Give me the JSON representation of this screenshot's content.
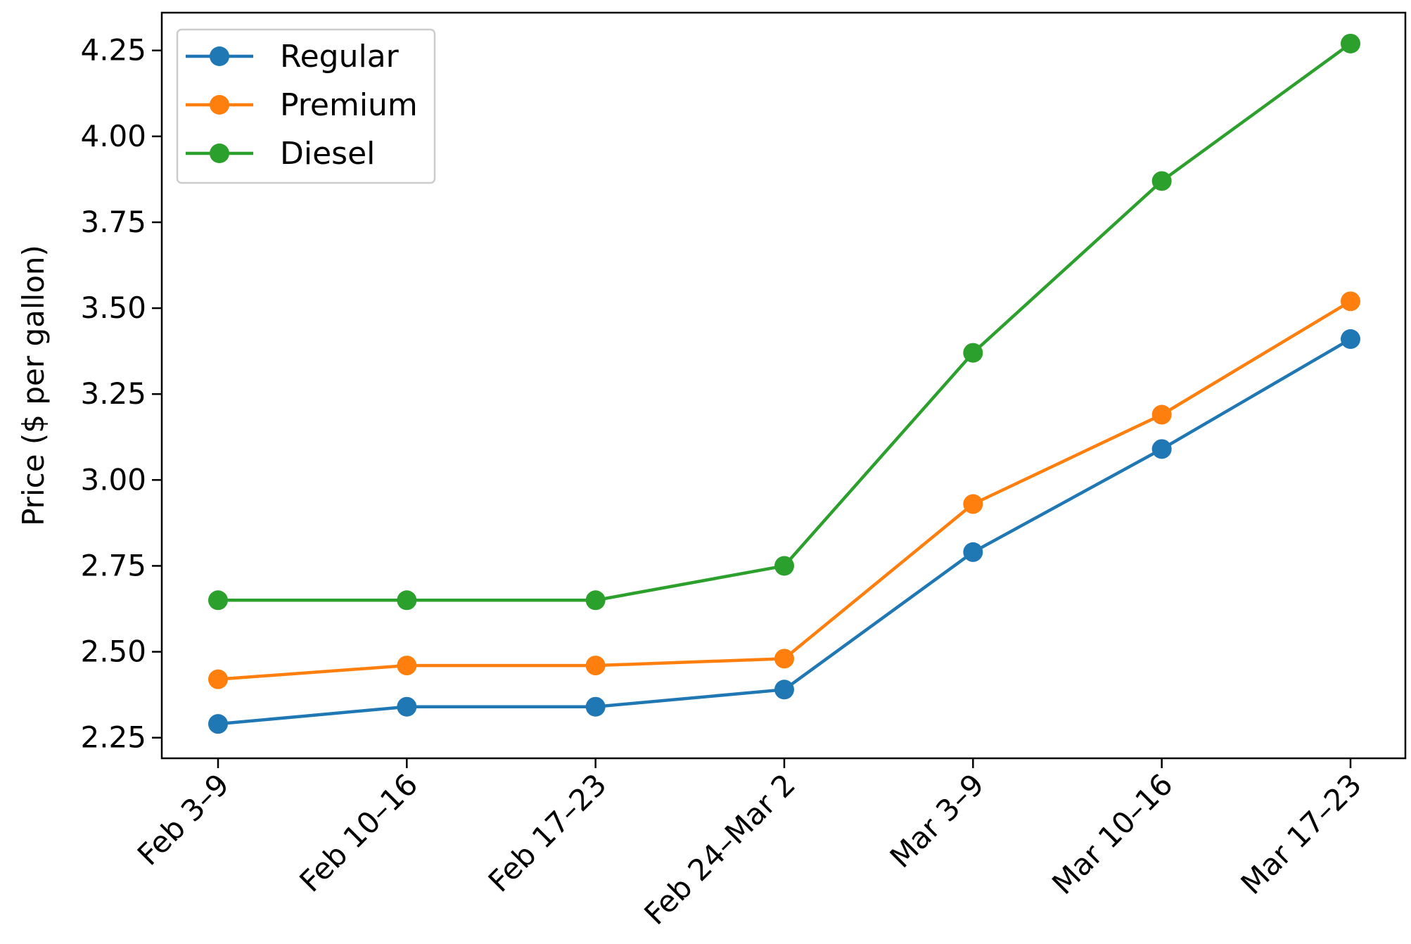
{
  "chart_data": {
    "type": "line",
    "ylabel": "Price ($ per gallon)",
    "categories": [
      "Feb 3–9",
      "Feb 10–16",
      "Feb 17–23",
      "Feb 24–Mar 2",
      "Mar 3–9",
      "Mar 10–16",
      "Mar 17–23"
    ],
    "series": [
      {
        "name": "Regular",
        "color": "#1f77b4",
        "values": [
          2.29,
          2.34,
          2.34,
          2.39,
          2.79,
          3.09,
          3.41
        ]
      },
      {
        "name": "Premium",
        "color": "#ff7f0e",
        "values": [
          2.42,
          2.46,
          2.46,
          2.48,
          2.93,
          3.19,
          3.52
        ]
      },
      {
        "name": "Diesel",
        "color": "#2ca02c",
        "values": [
          2.65,
          2.65,
          2.65,
          2.75,
          3.37,
          3.87,
          4.27
        ]
      }
    ],
    "yticks": [
      "2.25",
      "2.50",
      "2.75",
      "3.00",
      "3.25",
      "3.50",
      "3.75",
      "4.00",
      "4.25"
    ],
    "ylim": [
      2.19,
      4.36
    ],
    "grid": false,
    "legend_position": "top-left",
    "markers": "circle"
  }
}
